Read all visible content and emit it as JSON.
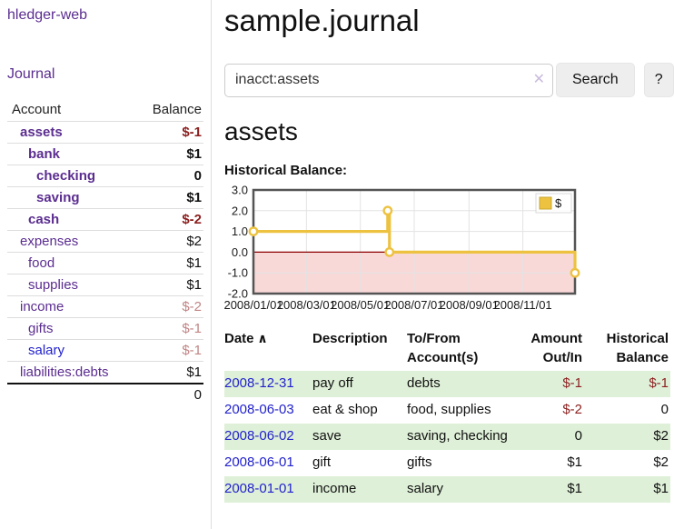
{
  "app": {
    "title": "hledger-web",
    "nav_journal": "Journal"
  },
  "colors": {
    "accent_purple": "#5b2d90",
    "link_blue": "#2222cc",
    "negative_strong": "#8b1f1f",
    "negative_soft": "#c08585",
    "row_stripe_green": "#dff0d8",
    "series_gold": "#edc240",
    "negative_fill_pink": "#f9d8d8",
    "zero_line_red": "#8b0000"
  },
  "sidebar": {
    "columns": {
      "account": "Account",
      "balance": "Balance"
    },
    "accounts": [
      {
        "name": "assets",
        "indent": 0,
        "bold": true,
        "balance": "$-1",
        "neg": "strong"
      },
      {
        "name": "bank",
        "indent": 1,
        "bold": true,
        "balance": "$1",
        "neg": "none"
      },
      {
        "name": "checking",
        "indent": 2,
        "bold": true,
        "balance": "0",
        "neg": "none"
      },
      {
        "name": "saving",
        "indent": 2,
        "bold": true,
        "balance": "$1",
        "neg": "none"
      },
      {
        "name": "cash",
        "indent": 1,
        "bold": true,
        "balance": "$-2",
        "neg": "strong"
      },
      {
        "name": "expenses",
        "indent": 0,
        "bold": false,
        "balance": "$2",
        "neg": "none"
      },
      {
        "name": "food",
        "indent": 1,
        "bold": false,
        "balance": "$1",
        "neg": "none"
      },
      {
        "name": "supplies",
        "indent": 1,
        "bold": false,
        "balance": "$1",
        "neg": "none"
      },
      {
        "name": "income",
        "indent": 0,
        "bold": false,
        "balance": "$-2",
        "neg": "soft"
      },
      {
        "name": "gifts",
        "indent": 1,
        "bold": false,
        "balance": "$-1",
        "neg": "soft"
      },
      {
        "name": "salary",
        "indent": 1,
        "bold": false,
        "balance": "$-1",
        "neg": "soft",
        "blue": true
      },
      {
        "name": "liabilities:debts",
        "indent": 0,
        "bold": false,
        "balance": "$1",
        "neg": "none"
      }
    ],
    "total": "0"
  },
  "header": {
    "title": "sample.journal"
  },
  "search": {
    "value": "inacct:assets",
    "clear_icon": "✕",
    "button": "Search",
    "help_button": "?"
  },
  "account_page": {
    "heading": "assets",
    "chart_label": "Historical Balance:"
  },
  "chart_data": {
    "type": "line",
    "step": true,
    "title": "Historical Balance:",
    "series": [
      {
        "name": "$",
        "color": "#edc240",
        "points": [
          {
            "date": "2008-01-01",
            "x": 0,
            "y": 1.0
          },
          {
            "date": "2008-06-01",
            "x": 152,
            "y": 2.0
          },
          {
            "date": "2008-06-03",
            "x": 154,
            "y": 0.0
          },
          {
            "date": "2008-12-31",
            "x": 364,
            "y": -1.0
          }
        ]
      }
    ],
    "xlim": [
      0,
      364
    ],
    "ylim": [
      -2.0,
      3.0
    ],
    "yticks": [
      3.0,
      2.0,
      1.0,
      0.0,
      -1.0,
      -2.0
    ],
    "xticks": [
      {
        "x": 0,
        "label": "2008/01/01"
      },
      {
        "x": 60,
        "label": "2008/03/01"
      },
      {
        "x": 121,
        "label": "2008/05/01"
      },
      {
        "x": 182,
        "label": "2008/07/01"
      },
      {
        "x": 244,
        "label": "2008/09/01"
      },
      {
        "x": 305,
        "label": "2008/11/01"
      }
    ],
    "legend": {
      "label": "$",
      "position": "top-right"
    },
    "grid": true,
    "negative_region": {
      "from": 0,
      "to": -2,
      "fill": "#f9d8d8",
      "zero_line_color": "#8b0000"
    }
  },
  "register": {
    "sort_icon": "∧",
    "columns": [
      {
        "label": "Date",
        "align": "left",
        "sortable": true
      },
      {
        "label": "Description",
        "align": "left"
      },
      {
        "label": "To/From Account(s)",
        "align": "left"
      },
      {
        "label": "Amount Out/In",
        "align": "right"
      },
      {
        "label": "Historical Balance",
        "align": "right"
      }
    ],
    "rows": [
      {
        "date": "2008-12-31",
        "description": "pay off",
        "accounts": "debts",
        "amount": "$-1",
        "amount_neg": true,
        "balance": "$-1",
        "balance_neg": true,
        "shaded": true
      },
      {
        "date": "2008-06-03",
        "description": "eat & shop",
        "accounts": "food, supplies",
        "amount": "$-2",
        "amount_neg": true,
        "balance": "0",
        "balance_neg": false,
        "shaded": false
      },
      {
        "date": "2008-06-02",
        "description": "save",
        "accounts": "saving, checking",
        "amount": "0",
        "amount_neg": false,
        "balance": "$2",
        "balance_neg": false,
        "shaded": true
      },
      {
        "date": "2008-06-01",
        "description": "gift",
        "accounts": "gifts",
        "amount": "$1",
        "amount_neg": false,
        "balance": "$2",
        "balance_neg": false,
        "shaded": false
      },
      {
        "date": "2008-01-01",
        "description": "income",
        "accounts": "salary",
        "amount": "$1",
        "amount_neg": false,
        "balance": "$1",
        "balance_neg": false,
        "shaded": true
      }
    ]
  }
}
